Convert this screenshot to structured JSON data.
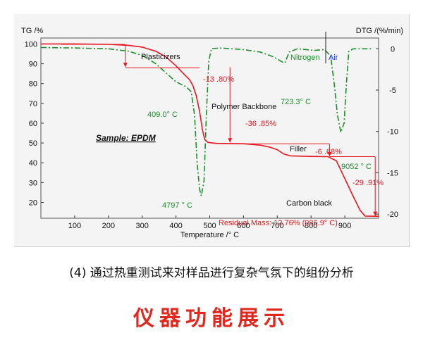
{
  "chart_data": {
    "type": "line",
    "xlabel": "Temperature /° C",
    "ylabel_left": "TG /%",
    "ylabel_right": "DTG /(%/min)",
    "xlim": [
      0,
      1000
    ],
    "ylim_left": [
      12,
      103
    ],
    "ylim_right": [
      -20.5,
      1.3
    ],
    "x_ticks": [
      100,
      200,
      300,
      400,
      500,
      600,
      700,
      800,
      900
    ],
    "y_left_ticks": [
      20,
      30,
      40,
      50,
      60,
      70,
      80,
      90,
      100
    ],
    "y_right_ticks": [
      0,
      -5,
      -10,
      -15,
      -20
    ],
    "series": [
      {
        "axis": "left",
        "color": "#e8161e",
        "style": "solid",
        "points": [
          [
            0,
            100
          ],
          [
            100,
            100
          ],
          [
            200,
            99.8
          ],
          [
            260,
            99.3
          ],
          [
            300,
            98.4
          ],
          [
            340,
            96.3
          ],
          [
            370,
            93.5
          ],
          [
            400,
            89
          ],
          [
            425,
            84.5
          ],
          [
            440,
            82
          ],
          [
            450,
            79
          ],
          [
            460,
            74
          ],
          [
            470,
            66
          ],
          [
            478,
            57
          ],
          [
            485,
            51.8
          ],
          [
            495,
            50.3
          ],
          [
            520,
            49.8
          ],
          [
            600,
            49.6
          ],
          [
            650,
            48.9
          ],
          [
            680,
            47.8
          ],
          [
            700,
            46.6
          ],
          [
            720,
            44.4
          ],
          [
            740,
            43.5
          ],
          [
            800,
            43.2
          ],
          [
            850,
            43.1
          ],
          [
            875,
            41
          ],
          [
            900,
            32
          ],
          [
            925,
            23
          ],
          [
            945,
            16
          ],
          [
            960,
            13.1
          ],
          [
            1000,
            13
          ]
        ]
      },
      {
        "axis": "right",
        "color": "#1e8f2a",
        "style": "dashed",
        "points": [
          [
            0,
            0.15
          ],
          [
            100,
            0.1
          ],
          [
            200,
            0
          ],
          [
            260,
            -0.3
          ],
          [
            300,
            -0.8
          ],
          [
            340,
            -1.8
          ],
          [
            370,
            -2.9
          ],
          [
            400,
            -4
          ],
          [
            415,
            -4.3
          ],
          [
            430,
            -4.6
          ],
          [
            445,
            -5.2
          ],
          [
            455,
            -8
          ],
          [
            463,
            -14
          ],
          [
            470,
            -17
          ],
          [
            475,
            -17.8
          ],
          [
            483,
            -16
          ],
          [
            490,
            -8
          ],
          [
            497,
            -1.5
          ],
          [
            505,
            0
          ],
          [
            530,
            0.1
          ],
          [
            600,
            -0.1
          ],
          [
            650,
            -0.4
          ],
          [
            690,
            -1
          ],
          [
            715,
            -1.6
          ],
          [
            723,
            -1.7
          ],
          [
            735,
            -0.4
          ],
          [
            760,
            0
          ],
          [
            810,
            -0.2
          ],
          [
            840,
            -0.1
          ],
          [
            858,
            -0.9
          ],
          [
            868,
            -4
          ],
          [
            878,
            -8
          ],
          [
            888,
            -10.1
          ],
          [
            898,
            -9
          ],
          [
            905,
            -4
          ],
          [
            912,
            -0.3
          ],
          [
            925,
            0
          ],
          [
            960,
            0
          ],
          [
            980,
            0
          ]
        ]
      }
    ],
    "legend": {
      "nitrogen": "Nitrogen",
      "air": "Air"
    },
    "annotations": {
      "sample": "Sample: EPDM",
      "plasticizers": "Plasticizers",
      "polymer_backbone": "Polymer Backbone",
      "filler": "Filler",
      "carbon_black": "Carbon black",
      "step1": "-13 .80%",
      "step2": "-36 .85%",
      "step3": "-6 .68%",
      "step4": "-29 .91%",
      "peak1": "409.0° C",
      "peak2": "4797 ° C",
      "peak3": "723.3° C",
      "peak4": "9052 ° C",
      "residual": "Residual Mass: 12.76% (986.9° C)"
    },
    "colors": {
      "tg": "#e8161e",
      "dtg": "#1e8f2a",
      "air": "#1a3cff"
    },
    "grid": false
  },
  "caption": "(4) 通过热重测试来对样品进行复杂气氛下的组份分析",
  "footer_title": "仪器功能展示"
}
